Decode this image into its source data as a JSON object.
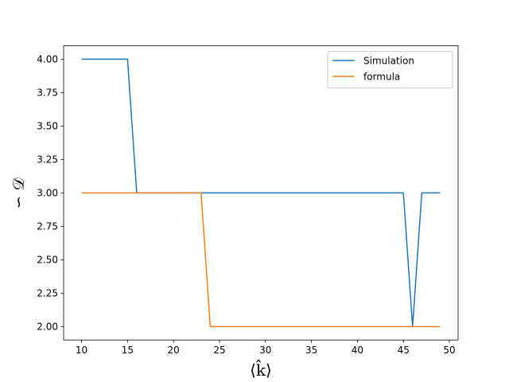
{
  "chart_data": {
    "type": "line",
    "title": "",
    "xlabel": "⟨k̂⟩",
    "ylabel": "∽ 𝒟",
    "xlim": [
      8.05,
      50.95
    ],
    "ylim": [
      1.9,
      4.1
    ],
    "xticks": [
      10,
      15,
      20,
      25,
      30,
      35,
      40,
      45,
      50
    ],
    "yticks": [
      2.0,
      2.25,
      2.5,
      2.75,
      3.0,
      3.25,
      3.5,
      3.75,
      4.0
    ],
    "xtick_labels": [
      "10",
      "15",
      "20",
      "25",
      "30",
      "35",
      "40",
      "45",
      "50"
    ],
    "ytick_labels": [
      "2.00",
      "2.25",
      "2.50",
      "2.75",
      "3.00",
      "3.25",
      "3.50",
      "3.75",
      "4.00"
    ],
    "grid": false,
    "legend_position": "top-right",
    "series": [
      {
        "name": "Simulation",
        "color": "#1f77b4",
        "x": [
          10,
          15,
          16,
          23,
          45,
          46,
          47,
          49
        ],
        "y": [
          4,
          4,
          3,
          3,
          3,
          2,
          3,
          3
        ]
      },
      {
        "name": "formula",
        "color": "#ff7f0e",
        "x": [
          10,
          16,
          23,
          24,
          45,
          49
        ],
        "y": [
          3,
          3,
          3,
          2,
          2,
          2
        ]
      }
    ]
  }
}
